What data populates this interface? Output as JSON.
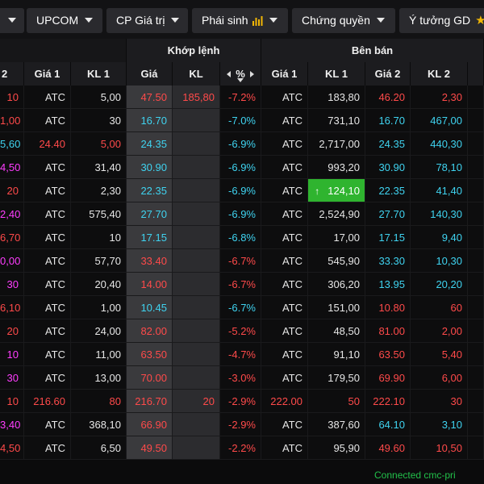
{
  "tabs": [
    {
      "label": "",
      "id": "tab-hnx",
      "caret": true
    },
    {
      "label": "UPCOM",
      "id": "tab-upcom",
      "caret": true
    },
    {
      "label": "CP Giá trị",
      "id": "tab-cp-gia-tri",
      "caret": true
    },
    {
      "label": "Phái sinh",
      "id": "tab-phai-sinh",
      "caret": true,
      "icon": "bar-chart-icon"
    },
    {
      "label": "Chứng quyền",
      "id": "tab-chung-quyen",
      "caret": true
    },
    {
      "label": "Ý tưởng GD",
      "id": "tab-y-tuong-gd",
      "caret": false,
      "icon": "star-icon"
    }
  ],
  "groups": {
    "khop_lenh": "Khớp lệnh",
    "ben_ban": "Bên bán"
  },
  "columns": {
    "bid2": "2",
    "bid_gia1": "Giá 1",
    "bid_kl1": "KL 1",
    "gia": "Giá",
    "kl": "KL",
    "pct": "%",
    "ask_gia1": "Giá 1",
    "ask_kl1": "KL 1",
    "ask_gia2": "Giá 2",
    "ask_kl2": "KL 2"
  },
  "rows": [
    {
      "b2": "10",
      "b2c": "red",
      "bg1": "ATC",
      "bk1": "5,00",
      "bk1c": "white",
      "g": "47.50",
      "gc": "red",
      "kl": "185,80",
      "klc": "red",
      "p": "-7.2%",
      "pc": "red",
      "ag1": "ATC",
      "ak1": "183,80",
      "ag2": "46.20",
      "ag2c": "red",
      "ak2": "2,30",
      "ak2c": "red"
    },
    {
      "b2": "1,00",
      "b2c": "red",
      "bg1": "ATC",
      "bk1": "30",
      "bk1c": "white",
      "g": "16.70",
      "gc": "cyan",
      "kl": "",
      "klc": "",
      "p": "-7.0%",
      "pc": "cyan",
      "ag1": "ATC",
      "ak1": "731,10",
      "ag2": "16.70",
      "ag2c": "cyan",
      "ak2": "467,00",
      "ak2c": "cyan"
    },
    {
      "b2": "5,60",
      "b2c": "cyan",
      "bg1": "24.40",
      "bg1c": "red",
      "bk1": "5,00",
      "bk1c": "red",
      "g": "24.35",
      "gc": "cyan",
      "kl": "",
      "klc": "",
      "p": "-6.9%",
      "pc": "cyan",
      "ag1": "ATC",
      "ak1": "2,717,00",
      "ag2": "24.35",
      "ag2c": "cyan",
      "ak2": "440,30",
      "ak2c": "cyan"
    },
    {
      "b2": "4,50",
      "b2c": "mag",
      "bg1": "ATC",
      "bk1": "31,40",
      "bk1c": "white",
      "g": "30.90",
      "gc": "cyan",
      "kl": "",
      "klc": "",
      "p": "-6.9%",
      "pc": "cyan",
      "ag1": "ATC",
      "ak1": "993,20",
      "ag2": "30.90",
      "ag2c": "cyan",
      "ak2": "78,10",
      "ak2c": "cyan"
    },
    {
      "b2": "20",
      "b2c": "red",
      "bg1": "ATC",
      "bk1": "2,30",
      "bk1c": "white",
      "g": "22.35",
      "gc": "cyan",
      "kl": "",
      "klc": "",
      "p": "-6.9%",
      "pc": "cyan",
      "ag1": "ATC",
      "ak1": "124,10",
      "ak1hl": true,
      "ag2": "22.35",
      "ag2c": "cyan",
      "ak2": "41,40",
      "ak2c": "cyan"
    },
    {
      "b2": "2,40",
      "b2c": "mag",
      "bg1": "ATC",
      "bk1": "575,40",
      "bk1c": "white",
      "g": "27.70",
      "gc": "cyan",
      "kl": "",
      "klc": "",
      "p": "-6.9%",
      "pc": "cyan",
      "ag1": "ATC",
      "ak1": "2,524,90",
      "ag2": "27.70",
      "ag2c": "cyan",
      "ak2": "140,30",
      "ak2c": "cyan"
    },
    {
      "b2": "6,70",
      "b2c": "red",
      "bg1": "ATC",
      "bk1": "10",
      "bk1c": "white",
      "g": "17.15",
      "gc": "cyan",
      "kl": "",
      "klc": "",
      "p": "-6.8%",
      "pc": "cyan",
      "ag1": "ATC",
      "ak1": "17,00",
      "ag2": "17.15",
      "ag2c": "cyan",
      "ak2": "9,40",
      "ak2c": "cyan"
    },
    {
      "b2": "0,00",
      "b2c": "mag",
      "bg1": "ATC",
      "bk1": "57,70",
      "bk1c": "white",
      "g": "33.40",
      "gc": "red",
      "kl": "",
      "klc": "",
      "p": "-6.7%",
      "pc": "red",
      "ag1": "ATC",
      "ak1": "545,90",
      "ag2": "33.30",
      "ag2c": "cyan",
      "ak2": "10,30",
      "ak2c": "cyan"
    },
    {
      "b2": "30",
      "b2c": "mag",
      "bg1": "ATC",
      "bk1": "20,40",
      "bk1c": "white",
      "g": "14.00",
      "gc": "red",
      "kl": "",
      "klc": "",
      "p": "-6.7%",
      "pc": "red",
      "ag1": "ATC",
      "ak1": "306,20",
      "ag2": "13.95",
      "ag2c": "cyan",
      "ak2": "20,20",
      "ak2c": "cyan"
    },
    {
      "b2": "6,10",
      "b2c": "red",
      "bg1": "ATC",
      "bk1": "1,00",
      "bk1c": "white",
      "g": "10.45",
      "gc": "cyan",
      "kl": "",
      "klc": "",
      "p": "-6.7%",
      "pc": "cyan",
      "ag1": "ATC",
      "ak1": "151,00",
      "ag2": "10.80",
      "ag2c": "red",
      "ak2": "60",
      "ak2c": "red"
    },
    {
      "b2": "20",
      "b2c": "red",
      "bg1": "ATC",
      "bk1": "24,00",
      "bk1c": "white",
      "g": "82.00",
      "gc": "red",
      "kl": "",
      "klc": "",
      "p": "-5.2%",
      "pc": "red",
      "ag1": "ATC",
      "ak1": "48,50",
      "ag2": "81.00",
      "ag2c": "red",
      "ak2": "2,00",
      "ak2c": "red"
    },
    {
      "b2": "10",
      "b2c": "mag",
      "bg1": "ATC",
      "bk1": "11,00",
      "bk1c": "white",
      "g": "63.50",
      "gc": "red",
      "kl": "",
      "klc": "",
      "p": "-4.7%",
      "pc": "red",
      "ag1": "ATC",
      "ak1": "91,10",
      "ag2": "63.50",
      "ag2c": "red",
      "ak2": "5,40",
      "ak2c": "red"
    },
    {
      "b2": "30",
      "b2c": "mag",
      "bg1": "ATC",
      "bk1": "13,00",
      "bk1c": "white",
      "g": "70.00",
      "gc": "red",
      "kl": "",
      "klc": "",
      "p": "-3.0%",
      "pc": "red",
      "ag1": "ATC",
      "ak1": "179,50",
      "ag2": "69.90",
      "ag2c": "red",
      "ak2": "6,00",
      "ak2c": "red"
    },
    {
      "b2": "10",
      "b2c": "red",
      "bg1": "216.60",
      "bg1c": "red",
      "bk1": "80",
      "bk1c": "red",
      "g": "216.70",
      "gc": "red",
      "kl": "20",
      "klc": "red",
      "p": "-2.9%",
      "pc": "red",
      "ag1": "222.00",
      "ag1c": "red",
      "ak1": "50",
      "ak1c": "red",
      "ag2": "222.10",
      "ag2c": "red",
      "ak2": "30",
      "ak2c": "red"
    },
    {
      "b2": "3,40",
      "b2c": "mag",
      "bg1": "ATC",
      "bk1": "368,10",
      "bk1c": "white",
      "g": "66.90",
      "gc": "red",
      "kl": "",
      "klc": "",
      "p": "-2.9%",
      "pc": "red",
      "ag1": "ATC",
      "ak1": "387,60",
      "ag2": "64.10",
      "ag2c": "cyan",
      "ak2": "3,10",
      "ak2c": "cyan"
    },
    {
      "b2": "4,50",
      "b2c": "red",
      "bg1": "ATC",
      "bk1": "6,50",
      "bk1c": "white",
      "g": "49.50",
      "gc": "red",
      "kl": "",
      "klc": "",
      "p": "-2.2%",
      "pc": "red",
      "ag1": "ATC",
      "ak1": "95,90",
      "ag2": "49.60",
      "ag2c": "red",
      "ak2": "10,50",
      "ak2c": "red"
    }
  ],
  "footer": {
    "status": "Connected cmc-pri"
  },
  "colors": {
    "red": "#ff4a4a",
    "cyan": "#3fd3f0",
    "magenta": "#ff3dff",
    "green_highlight": "#2fb42f",
    "connected": "#22c04a"
  }
}
